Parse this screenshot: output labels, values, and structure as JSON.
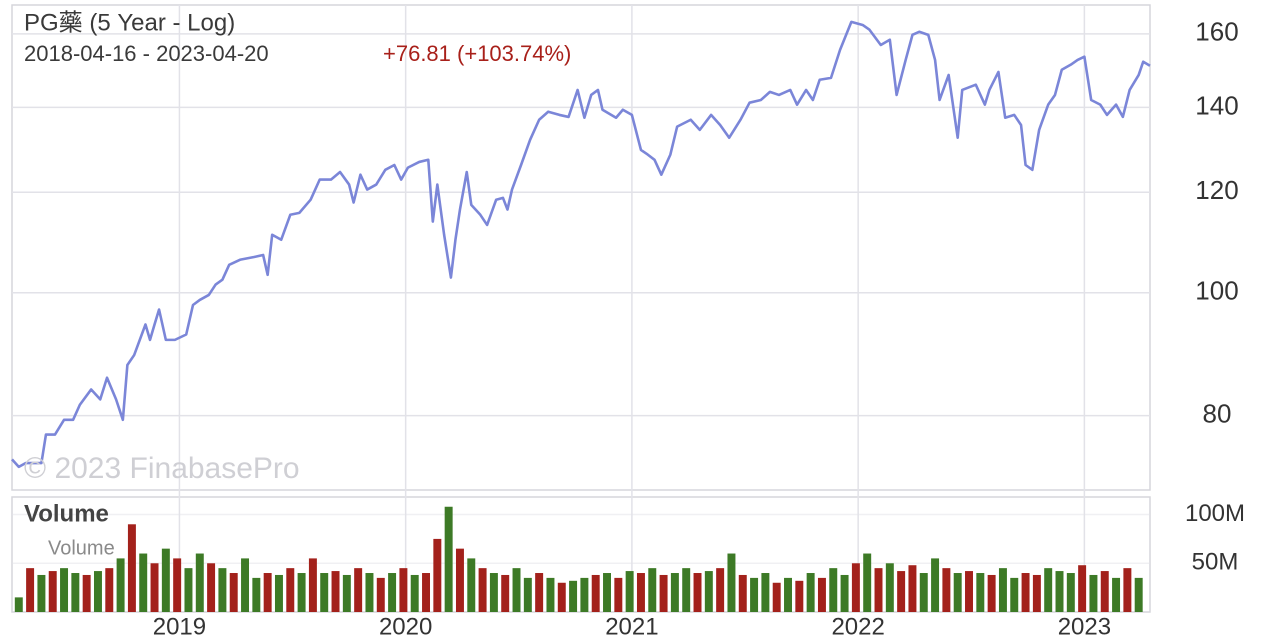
{
  "chart_data": [
    {
      "type": "line",
      "title": "PG藥 (5 Year - Log)",
      "subtitle": "2018-04-16 - 2023-04-20",
      "annotation": "+76.81 (+103.74%)",
      "annotation_color": "#a8201a",
      "watermark": "© 2023 FinabasePro",
      "color": "#7b86d8",
      "log_scale": true,
      "grid": true,
      "xlim": [
        2018.26,
        2023.29
      ],
      "ylim": [
        69.9,
        168.6
      ],
      "yticks": [
        80,
        100,
        120,
        140,
        160
      ],
      "x": [
        2018.26,
        2018.29,
        2018.32,
        2018.35,
        2018.39,
        2018.41,
        2018.45,
        2018.49,
        2018.53,
        2018.56,
        2018.61,
        2018.65,
        2018.68,
        2018.72,
        2018.75,
        2018.77,
        2018.8,
        2018.85,
        2018.87,
        2018.89,
        2018.91,
        2018.94,
        2018.98,
        2019.03,
        2019.06,
        2019.09,
        2019.13,
        2019.16,
        2019.19,
        2019.22,
        2019.27,
        2019.33,
        2019.37,
        2019.39,
        2019.41,
        2019.45,
        2019.49,
        2019.53,
        2019.58,
        2019.62,
        2019.67,
        2019.71,
        2019.75,
        2019.77,
        2019.8,
        2019.83,
        2019.87,
        2019.91,
        2019.95,
        2019.98,
        2020.01,
        2020.06,
        2020.1,
        2020.12,
        2020.14,
        2020.17,
        2020.2,
        2020.22,
        2020.24,
        2020.27,
        2020.29,
        2020.33,
        2020.36,
        2020.4,
        2020.43,
        2020.45,
        2020.47,
        2020.51,
        2020.55,
        2020.59,
        2020.63,
        2020.68,
        2020.72,
        2020.76,
        2020.79,
        2020.82,
        2020.85,
        2020.87,
        2020.93,
        2020.96,
        2021.0,
        2021.04,
        2021.07,
        2021.1,
        2021.13,
        2021.17,
        2021.2,
        2021.26,
        2021.3,
        2021.35,
        2021.39,
        2021.43,
        2021.48,
        2021.52,
        2021.57,
        2021.61,
        2021.65,
        2021.7,
        2021.73,
        2021.77,
        2021.8,
        2021.83,
        2021.88,
        2021.92,
        2021.97,
        2022.02,
        2022.05,
        2022.1,
        2022.14,
        2022.17,
        2022.21,
        2022.24,
        2022.27,
        2022.31,
        2022.34,
        2022.36,
        2022.4,
        2022.44,
        2022.46,
        2022.52,
        2022.56,
        2022.58,
        2022.62,
        2022.65,
        2022.69,
        2022.72,
        2022.74,
        2022.77,
        2022.8,
        2022.84,
        2022.87,
        2022.9,
        2022.94,
        2022.97,
        2023.0,
        2023.03,
        2023.07,
        2023.1,
        2023.14,
        2023.17,
        2023.2,
        2023.24,
        2023.26,
        2023.29
      ],
      "values": [
        73.9,
        72.9,
        73.4,
        73.4,
        73.4,
        77.3,
        77.3,
        79.4,
        79.4,
        81.6,
        83.9,
        82.4,
        85.7,
        82.4,
        79.4,
        87.7,
        89.3,
        94.4,
        91.8,
        94.4,
        97.0,
        91.8,
        91.8,
        92.7,
        97.8,
        98.7,
        99.6,
        101.5,
        102.4,
        105.2,
        106.2,
        106.7,
        107.1,
        103.3,
        111.1,
        110.1,
        115.2,
        115.6,
        118.4,
        122.8,
        122.8,
        124.5,
        121.7,
        117.8,
        123.9,
        120.6,
        121.7,
        125.0,
        126.1,
        122.8,
        125.5,
        126.8,
        127.3,
        113.8,
        121.7,
        111.1,
        102.8,
        110.1,
        116.3,
        124.5,
        117.3,
        115.2,
        113.1,
        118.4,
        118.8,
        116.3,
        120.6,
        126.1,
        132.0,
        136.9,
        138.9,
        138.1,
        137.6,
        144.5,
        137.4,
        143.2,
        144.5,
        139.4,
        137.4,
        139.4,
        138.1,
        129.6,
        128.5,
        127.3,
        123.9,
        128.5,
        135.2,
        136.9,
        134.4,
        138.1,
        135.6,
        132.5,
        136.9,
        141.2,
        141.9,
        144.0,
        143.2,
        144.5,
        140.7,
        144.5,
        141.9,
        147.2,
        147.7,
        155.4,
        163.5,
        162.6,
        161.2,
        156.8,
        158.3,
        143.2,
        152.6,
        159.7,
        160.6,
        159.7,
        152.6,
        141.9,
        148.5,
        132.5,
        144.5,
        145.9,
        140.7,
        144.5,
        149.3,
        137.4,
        138.1,
        135.6,
        126.1,
        125.0,
        134.4,
        140.7,
        143.2,
        149.9,
        151.3,
        152.6,
        153.5,
        141.9,
        140.7,
        138.1,
        140.7,
        137.6,
        144.5,
        148.5,
        152.1,
        151.0
      ]
    },
    {
      "type": "bar",
      "title": "Volume",
      "xlim": [
        2018.26,
        2023.29
      ],
      "xticks": [
        2019,
        2020,
        2021,
        2022,
        2023
      ],
      "ylim": [
        0,
        118
      ],
      "yticks": [
        {
          "value": 100,
          "label": "100M"
        },
        {
          "value": 50,
          "label": "50M"
        }
      ],
      "x": [
        2018.29,
        2018.34,
        2018.39,
        2018.44,
        2018.49,
        2018.54,
        2018.59,
        2018.64,
        2018.69,
        2018.74,
        2018.79,
        2018.84,
        2018.89,
        2018.94,
        2018.99,
        2019.04,
        2019.09,
        2019.14,
        2019.19,
        2019.24,
        2019.29,
        2019.34,
        2019.39,
        2019.44,
        2019.49,
        2019.54,
        2019.59,
        2019.64,
        2019.69,
        2019.74,
        2019.79,
        2019.84,
        2019.89,
        2019.94,
        2019.99,
        2020.04,
        2020.09,
        2020.14,
        2020.19,
        2020.24,
        2020.29,
        2020.34,
        2020.39,
        2020.44,
        2020.49,
        2020.54,
        2020.59,
        2020.64,
        2020.69,
        2020.74,
        2020.79,
        2020.84,
        2020.89,
        2020.94,
        2020.99,
        2021.04,
        2021.09,
        2021.14,
        2021.19,
        2021.24,
        2021.29,
        2021.34,
        2021.39,
        2021.44,
        2021.49,
        2021.54,
        2021.59,
        2021.64,
        2021.69,
        2021.74,
        2021.79,
        2021.84,
        2021.89,
        2021.94,
        2021.99,
        2022.04,
        2022.09,
        2022.14,
        2022.19,
        2022.24,
        2022.29,
        2022.34,
        2022.39,
        2022.44,
        2022.49,
        2022.54,
        2022.59,
        2022.64,
        2022.69,
        2022.74,
        2022.79,
        2022.84,
        2022.89,
        2022.94,
        2022.99,
        2023.04,
        2023.09,
        2023.14,
        2023.19,
        2023.24
      ],
      "series": [
        {
          "name": "Volume",
          "values": [
            15,
            45,
            38,
            42,
            45,
            40,
            38,
            42,
            45,
            55,
            90,
            60,
            50,
            65,
            55,
            45,
            60,
            50,
            45,
            40,
            55,
            35,
            40,
            38,
            45,
            40,
            55,
            40,
            42,
            38,
            45,
            40,
            35,
            40,
            45,
            38,
            40,
            75,
            108,
            65,
            55,
            45,
            40,
            38,
            45,
            35,
            40,
            35,
            30,
            32,
            35,
            38,
            40,
            35,
            42,
            40,
            45,
            38,
            40,
            45,
            40,
            42,
            45,
            60,
            38,
            35,
            40,
            30,
            35,
            32,
            40,
            35,
            45,
            38,
            50,
            60,
            45,
            50,
            42,
            48,
            40,
            55,
            45,
            40,
            42,
            40,
            38,
            45,
            35,
            40,
            38,
            45,
            42,
            40,
            48,
            38,
            42,
            35,
            45,
            35
          ],
          "colors": [
            "#3d7a26",
            "#a3211b",
            "#3d7a26",
            "#a3211b",
            "#3d7a26",
            "#3d7a26",
            "#a3211b",
            "#3d7a26",
            "#a3211b",
            "#3d7a26",
            "#a3211b",
            "#3d7a26",
            "#a3211b",
            "#3d7a26",
            "#a3211b",
            "#3d7a26",
            "#3d7a26",
            "#a3211b",
            "#3d7a26",
            "#a3211b",
            "#3d7a26",
            "#3d7a26",
            "#a3211b",
            "#3d7a26",
            "#a3211b",
            "#3d7a26",
            "#a3211b",
            "#3d7a26",
            "#a3211b",
            "#3d7a26",
            "#a3211b",
            "#3d7a26",
            "#a3211b",
            "#3d7a26",
            "#a3211b",
            "#3d7a26",
            "#a3211b",
            "#a3211b",
            "#3d7a26",
            "#a3211b",
            "#3d7a26",
            "#a3211b",
            "#3d7a26",
            "#a3211b",
            "#3d7a26",
            "#3d7a26",
            "#a3211b",
            "#3d7a26",
            "#a3211b",
            "#3d7a26",
            "#3d7a26",
            "#a3211b",
            "#3d7a26",
            "#a3211b",
            "#3d7a26",
            "#a3211b",
            "#3d7a26",
            "#a3211b",
            "#3d7a26",
            "#3d7a26",
            "#a3211b",
            "#3d7a26",
            "#a3211b",
            "#3d7a26",
            "#a3211b",
            "#3d7a26",
            "#3d7a26",
            "#a3211b",
            "#3d7a26",
            "#a3211b",
            "#3d7a26",
            "#a3211b",
            "#3d7a26",
            "#3d7a26",
            "#a3211b",
            "#3d7a26",
            "#a3211b",
            "#3d7a26",
            "#a3211b",
            "#a3211b",
            "#3d7a26",
            "#3d7a26",
            "#a3211b",
            "#3d7a26",
            "#a3211b",
            "#3d7a26",
            "#a3211b",
            "#3d7a26",
            "#3d7a26",
            "#a3211b",
            "#a3211b",
            "#3d7a26",
            "#3d7a26",
            "#3d7a26",
            "#a3211b",
            "#3d7a26",
            "#a3211b",
            "#3d7a26",
            "#a3211b",
            "#3d7a26"
          ]
        }
      ]
    }
  ]
}
